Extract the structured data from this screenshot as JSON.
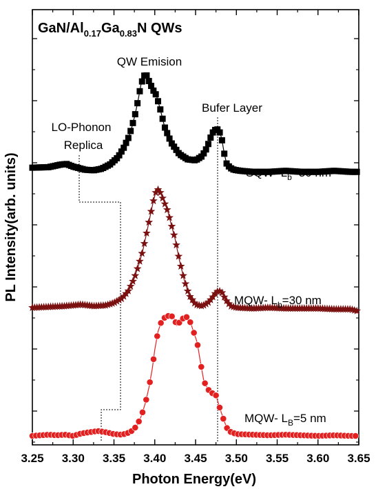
{
  "chart_data": {
    "type": "scatter",
    "title_parts": [
      "GaN/Al",
      "0.17",
      "Ga",
      "0.83",
      "N QWs"
    ],
    "xlabel": "Photon Energy(eV)",
    "ylabel": "PL Intensity(arb. units)",
    "xlim": [
      3.25,
      3.65
    ],
    "y_tick_labels": "none",
    "x_ticks": [
      "3.25",
      "3.30",
      "3.35",
      "3.40",
      "3.45",
      "3.50",
      "3.55",
      "3.60",
      "3.65"
    ],
    "x_tick_values": [
      3.25,
      3.3,
      3.35,
      3.4,
      3.45,
      3.5,
      3.55,
      3.6,
      3.65
    ],
    "series": [
      {
        "label_parts": [
          "SQW- L",
          "b",
          "=30 nm"
        ],
        "marker": "square",
        "color": "#000000",
        "x": [
          3.25,
          3.27,
          3.285,
          3.292,
          3.3,
          3.315,
          3.325,
          3.335,
          3.345,
          3.355,
          3.362,
          3.368,
          3.372,
          3.376,
          3.38,
          3.383,
          3.386,
          3.388,
          3.39,
          3.392,
          3.395,
          3.398,
          3.402,
          3.407,
          3.412,
          3.42,
          3.43,
          3.44,
          3.45,
          3.458,
          3.464,
          3.468,
          3.472,
          3.476,
          3.479,
          3.482,
          3.485,
          3.488,
          3.492,
          3.497,
          3.505,
          3.52,
          3.54,
          3.56,
          3.58,
          3.6,
          3.62,
          3.64,
          3.65
        ],
        "y": [
          0.19,
          0.195,
          0.22,
          0.225,
          0.2,
          0.17,
          0.165,
          0.18,
          0.22,
          0.29,
          0.38,
          0.48,
          0.58,
          0.7,
          0.85,
          0.98,
          1.05,
          1.08,
          1.07,
          1.03,
          0.98,
          0.93,
          0.88,
          0.74,
          0.58,
          0.43,
          0.32,
          0.27,
          0.26,
          0.3,
          0.38,
          0.47,
          0.54,
          0.56,
          0.54,
          0.47,
          0.33,
          0.23,
          0.19,
          0.17,
          0.16,
          0.15,
          0.15,
          0.16,
          0.15,
          0.15,
          0.16,
          0.15,
          0.15
        ]
      },
      {
        "label_parts": [
          "MQW- L",
          "b",
          "=30 nm"
        ],
        "marker": "star",
        "color": "#7a1010",
        "x": [
          3.25,
          3.27,
          3.29,
          3.3,
          3.31,
          3.325,
          3.34,
          3.35,
          3.36,
          3.368,
          3.375,
          3.38,
          3.385,
          3.39,
          3.394,
          3.398,
          3.401,
          3.404,
          3.407,
          3.41,
          3.413,
          3.416,
          3.42,
          3.425,
          3.43,
          3.436,
          3.442,
          3.45,
          3.458,
          3.465,
          3.47,
          3.474,
          3.478,
          3.482,
          3.487,
          3.493,
          3.5,
          3.52,
          3.54,
          3.56,
          3.58,
          3.6,
          3.62,
          3.64,
          3.65
        ],
        "y": [
          0.04,
          0.045,
          0.05,
          0.055,
          0.06,
          0.05,
          0.055,
          0.07,
          0.1,
          0.15,
          0.23,
          0.31,
          0.4,
          0.52,
          0.62,
          0.72,
          0.78,
          0.8,
          0.78,
          0.74,
          0.7,
          0.66,
          0.58,
          0.48,
          0.35,
          0.22,
          0.12,
          0.06,
          0.05,
          0.07,
          0.1,
          0.13,
          0.15,
          0.14,
          0.09,
          0.05,
          0.04,
          0.035,
          0.04,
          0.035,
          0.035,
          0.035,
          0.03,
          0.03,
          0.015
        ]
      },
      {
        "label_parts": [
          "MQW- L",
          "B",
          "=5 nm"
        ],
        "marker": "circle",
        "color": "#e32020",
        "x": [
          3.25,
          3.26,
          3.27,
          3.28,
          3.29,
          3.3,
          3.31,
          3.32,
          3.33,
          3.34,
          3.35,
          3.36,
          3.37,
          3.378,
          3.384,
          3.389,
          3.393,
          3.397,
          3.4,
          3.404,
          3.408,
          3.413,
          3.418,
          3.423,
          3.427,
          3.431,
          3.435,
          3.44,
          3.444,
          3.448,
          3.452,
          3.456,
          3.46,
          3.465,
          3.47,
          3.475,
          3.48,
          3.485,
          3.49,
          3.5,
          3.52,
          3.54,
          3.56,
          3.58,
          3.6,
          3.62,
          3.64,
          3.65
        ],
        "y": [
          0.0,
          0.005,
          0.01,
          0.005,
          0.01,
          0.0,
          0.02,
          0.03,
          0.04,
          0.03,
          0.015,
          0.01,
          0.03,
          0.08,
          0.17,
          0.28,
          0.4,
          0.55,
          0.7,
          0.85,
          0.93,
          0.97,
          0.98,
          0.97,
          0.9,
          0.93,
          0.96,
          0.97,
          0.92,
          0.84,
          0.76,
          0.6,
          0.45,
          0.38,
          0.35,
          0.33,
          0.22,
          0.12,
          0.04,
          0.015,
          0.01,
          0.005,
          0.01,
          0.005,
          0.0,
          0.005,
          0.0,
          0.0
        ]
      }
    ],
    "annotations": {
      "qw_emission": "QW Emision",
      "buffer_layer": "Bufer Layer",
      "lo_phonon_line1": "LO-Phonon",
      "lo_phonon_line2": "Replica"
    },
    "buffer_layer_energy": 3.477,
    "lo_phonon_energy": 3.325,
    "grid": false,
    "legend": "none"
  }
}
